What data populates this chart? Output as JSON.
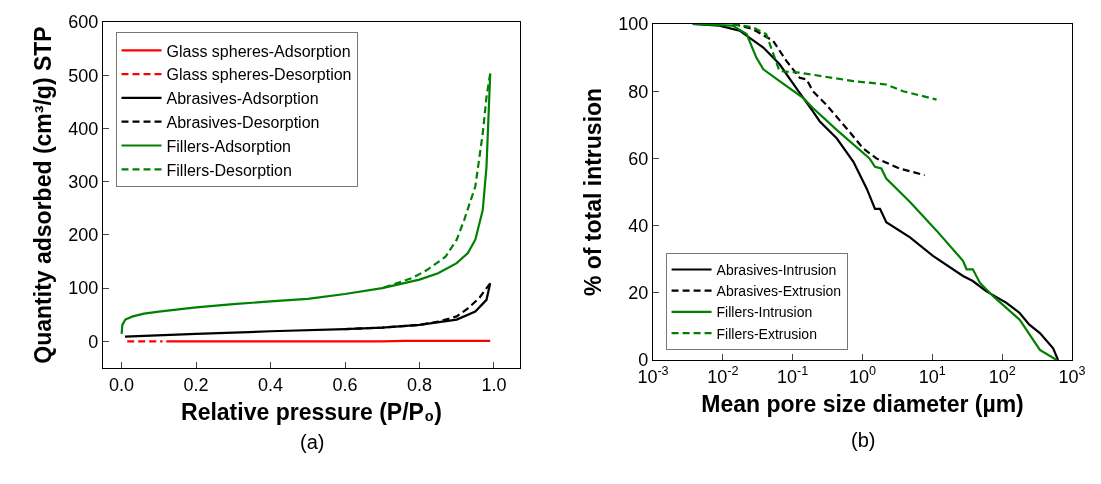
{
  "chart_data": [
    {
      "type": "line",
      "xlabel": "Relative pressure (P/P₀)",
      "ylabel": "Quantity adsorbed (cm³/g) STP",
      "annotations": [
        "(a)"
      ],
      "xlim": [
        -0.05,
        1.07
      ],
      "ylim": [
        -50,
        600
      ],
      "xticks": [
        {
          "value": 0,
          "label": "0.0"
        },
        {
          "value": 0.2,
          "label": "0.2"
        },
        {
          "value": 0.4,
          "label": "0.4"
        },
        {
          "value": 0.6,
          "label": "0.6"
        },
        {
          "value": 0.8,
          "label": "0.8"
        },
        {
          "value": 1,
          "label": "1.0"
        }
      ],
      "yticks": [
        0,
        100,
        200,
        300,
        400,
        500,
        600
      ],
      "legend": "top left",
      "series": [
        {
          "name": "Glass spheres-Adsorption",
          "color": "#ff0000",
          "line_style": "solid",
          "x": [
            0.12,
            0.2,
            0.3,
            0.4,
            0.5,
            0.6,
            0.7,
            0.76,
            0.8,
            0.9,
            0.99
          ],
          "values": [
            0,
            0,
            0,
            0,
            0,
            0,
            0,
            1,
            1,
            1,
            1
          ]
        },
        {
          "name": "Glass spheres-Desorption",
          "color": "#ff0000",
          "line_style": "dashed",
          "x": [
            0.015,
            0.11
          ],
          "values": [
            0,
            0
          ]
        },
        {
          "name": "Abrasives-Adsorption",
          "color": "#000000",
          "line_style": "solid",
          "x": [
            0.009,
            0.2,
            0.4,
            0.6,
            0.7,
            0.8,
            0.9,
            0.95,
            0.98,
            0.99
          ],
          "values": [
            9,
            14,
            19,
            23,
            26,
            31,
            41,
            56,
            78,
            109
          ]
        },
        {
          "name": "Abrasives-Desorption",
          "color": "#000000",
          "line_style": "dashed",
          "x": [
            0.99,
            0.96,
            0.93,
            0.9,
            0.85,
            0.8,
            0.7,
            0.6
          ],
          "values": [
            109,
            81,
            62,
            47,
            37,
            31,
            26,
            23
          ]
        },
        {
          "name": "Fillers-Adsorption",
          "color": "#008000",
          "line_style": "solid",
          "x": [
            0.0,
            0.002,
            0.01,
            0.03,
            0.06,
            0.1,
            0.2,
            0.3,
            0.4,
            0.5,
            0.6,
            0.7,
            0.8,
            0.85,
            0.9,
            0.93,
            0.95,
            0.97,
            0.98,
            0.99
          ],
          "values": [
            14,
            31,
            41,
            47,
            52,
            56,
            64,
            70,
            75,
            80,
            89,
            100,
            116,
            128,
            147,
            166,
            191,
            247,
            328,
            503
          ]
        },
        {
          "name": "Fillers-Desorption",
          "color": "#008000",
          "line_style": "dashed",
          "x": [
            0.99,
            0.98,
            0.97,
            0.95,
            0.92,
            0.9,
            0.87,
            0.82,
            0.78,
            0.7
          ],
          "values": [
            503,
            459,
            391,
            291,
            228,
            191,
            159,
            134,
            119,
            100
          ]
        }
      ]
    },
    {
      "type": "line",
      "xlabel": "Mean pore size diameter (µm)",
      "ylabel": "% of total intrusion",
      "annotations": [
        "(b)"
      ],
      "log": "x",
      "xlim": [
        0.001,
        1000
      ],
      "ylim": [
        0,
        100
      ],
      "xticks": [
        {
          "value": 0.001,
          "label": "10$^{-3}$"
        },
        {
          "value": 0.01,
          "label": "10$^{-2}$"
        },
        {
          "value": 0.1,
          "label": "10$^{-1}$"
        },
        {
          "value": 1,
          "label": "10$^{0}$"
        },
        {
          "value": 10,
          "label": "10$^{1}$"
        },
        {
          "value": 100,
          "label": "10$^{2}$"
        },
        {
          "value": 1000,
          "label": "10$^{3}$"
        }
      ],
      "yticks": [
        0,
        20,
        40,
        60,
        80,
        100
      ],
      "legend": "bottom left",
      "series": [
        {
          "name": "Abrasives-Intrusion",
          "color": "#000000",
          "line_style": "solid",
          "x": [
            0.0037,
            0.0089,
            0.0174,
            0.038,
            0.065,
            0.112,
            0.195,
            0.245,
            0.427,
            0.741,
            1.15,
            1.51,
            1.78,
            2.19,
            4.79,
            10.2,
            27.5,
            38,
            58.9,
            115,
            178,
            245,
            347,
            537,
            631
          ],
          "values": [
            100,
            99.5,
            98,
            93,
            88,
            81,
            74,
            71,
            66,
            59,
            51,
            45,
            45,
            41,
            36.5,
            31,
            25,
            23.5,
            20.5,
            17,
            14,
            10.5,
            8,
            3.5,
            0
          ]
        },
        {
          "name": "Abrasives-Extrusion",
          "color": "#000000",
          "line_style": "dashed",
          "x": [
            0.0141,
            0.0269,
            0.0525,
            0.0813,
            0.126,
            0.158,
            0.195,
            0.302,
            0.589,
            1.02,
            1.58,
            3.39,
            7.76
          ],
          "values": [
            100,
            98.5,
            95,
            89,
            84,
            83.5,
            80,
            76,
            69,
            63,
            60,
            57,
            55
          ]
        },
        {
          "name": "Fillers-Intrusion",
          "color": "#008000",
          "line_style": "solid",
          "x": [
            0.0037,
            0.0138,
            0.0219,
            0.0302,
            0.038,
            0.065,
            0.141,
            0.195,
            0.427,
            1.26,
            1.51,
            1.86,
            2.19,
            4.79,
            11.5,
            27.5,
            30.9,
            38,
            47.9,
            74.1,
            178,
            347,
            603
          ],
          "values": [
            100,
            99.5,
            97,
            90,
            86.5,
            83,
            78,
            75,
            68.5,
            60,
            57.5,
            57,
            54,
            47,
            38.5,
            29.5,
            27,
            27,
            23,
            19,
            12,
            3,
            0
          ]
        },
        {
          "name": "Fillers-Extrusion",
          "color": "#008000",
          "line_style": "dashed",
          "x": [
            0.0138,
            0.0269,
            0.0417,
            0.0575,
            0.0646,
            0.126,
            0.741,
            2.19,
            3.8,
            11.5
          ],
          "values": [
            100,
            99,
            97,
            89,
            86,
            85.5,
            83,
            82,
            80,
            77.5
          ]
        }
      ]
    }
  ]
}
